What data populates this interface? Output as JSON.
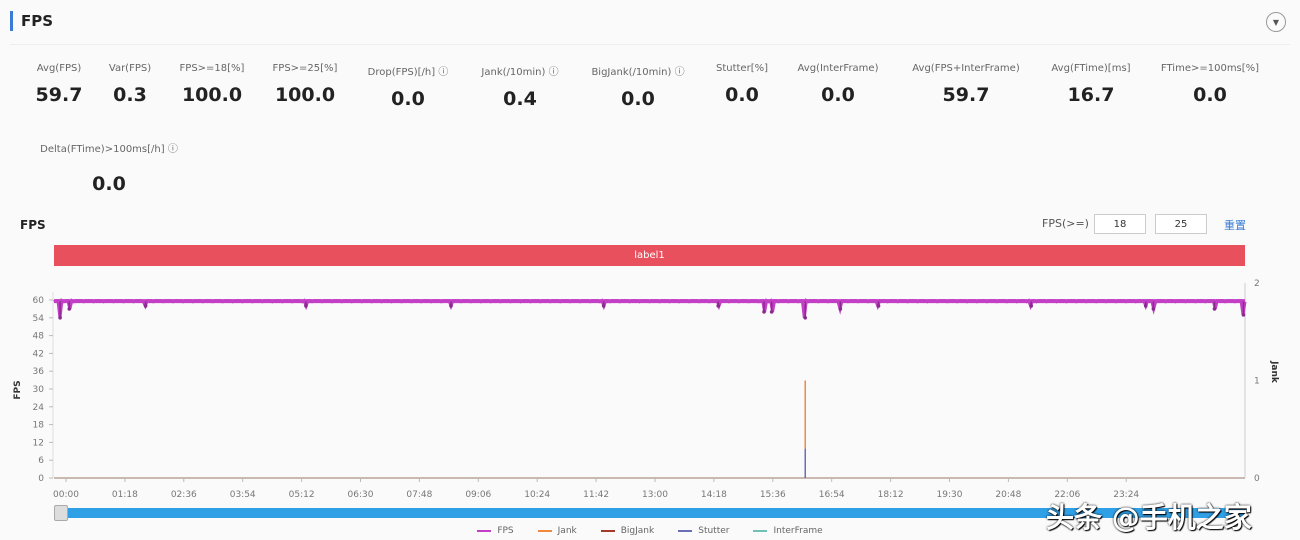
{
  "header": {
    "title": "FPS",
    "collapse_icon": "chevron-down-icon"
  },
  "metrics": [
    {
      "label": "Avg(FPS)",
      "value": "59.7"
    },
    {
      "label": "Var(FPS)",
      "value": "0.3"
    },
    {
      "label": "FPS>=18[%]",
      "value": "100.0"
    },
    {
      "label": "FPS>=25[%]",
      "value": "100.0"
    },
    {
      "label": "Drop(FPS)[/h] ⓘ",
      "value": "0.0"
    },
    {
      "label": "Jank(/10min) ⓘ",
      "value": "0.4"
    },
    {
      "label": "BigJank(/10min) ⓘ",
      "value": "0.0"
    },
    {
      "label": "Stutter[%]",
      "value": "0.0"
    },
    {
      "label": "Avg(InterFrame)",
      "value": "0.0"
    },
    {
      "label": "Avg(FPS+InterFrame)",
      "value": "59.7"
    },
    {
      "label": "Avg(FTime)[ms]",
      "value": "16.7"
    },
    {
      "label": "FTime>=100ms[%]",
      "value": "0.0"
    },
    {
      "label": "Delta(FTime)>100ms[/h] ⓘ",
      "value": "0.0"
    }
  ],
  "chart_panel": {
    "title": "FPS",
    "filter_label": "FPS(>=)",
    "input1": "18",
    "input2": "25",
    "reset_label": "重置",
    "label_bar": "label1"
  },
  "chart_data": {
    "type": "line",
    "ylabel": "FPS",
    "y2label": "Jank",
    "yticks": [
      0,
      6,
      12,
      18,
      24,
      30,
      36,
      42,
      48,
      54,
      60
    ],
    "ylim": [
      0,
      60
    ],
    "y2ticks": [
      0,
      1,
      2
    ],
    "y2lim": [
      0,
      2
    ],
    "xlim": [
      "00:00",
      "26:00"
    ],
    "xticks": [
      "00:00",
      "01:18",
      "02:36",
      "03:54",
      "05:12",
      "06:30",
      "07:48",
      "09:06",
      "10:24",
      "11:42",
      "13:00",
      "14:18",
      "15:36",
      "16:54",
      "18:12",
      "19:30",
      "20:48",
      "22:06",
      "23:24"
    ],
    "series": [
      {
        "name": "FPS",
        "color": "#c23fc6",
        "baseline": 60,
        "dips": [
          [
            "00:08",
            54
          ],
          [
            "00:20",
            57
          ],
          [
            "02:00",
            58
          ],
          [
            "05:30",
            58
          ],
          [
            "08:40",
            58
          ],
          [
            "12:00",
            58
          ],
          [
            "14:30",
            58
          ],
          [
            "15:30",
            56
          ],
          [
            "15:40",
            56
          ],
          [
            "16:24",
            54
          ],
          [
            "17:10",
            57
          ],
          [
            "18:00",
            58
          ],
          [
            "21:20",
            58
          ],
          [
            "23:50",
            58
          ],
          [
            "24:00",
            57
          ],
          [
            "25:20",
            57
          ],
          [
            "25:58",
            55
          ]
        ]
      },
      {
        "name": "Jank",
        "color": "#f08a3c",
        "axis": "right",
        "points": [
          [
            "16:24",
            1
          ]
        ]
      },
      {
        "name": "BigJank",
        "color": "#a33a2a",
        "axis": "right",
        "points": []
      },
      {
        "name": "Stutter",
        "color": "#6a6fb5",
        "axis": "right",
        "points": [
          [
            "16:24",
            0.3
          ]
        ]
      },
      {
        "name": "InterFrame",
        "color": "#6fc2b5",
        "axis": "right",
        "points": []
      }
    ],
    "grid": false,
    "legend": "bottom"
  },
  "watermark": "头条 @手机之家"
}
